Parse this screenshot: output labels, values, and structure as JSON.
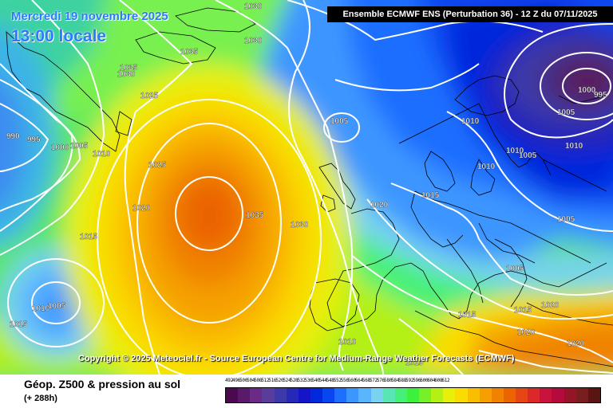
{
  "header": {
    "date": "Mercredi 19 novembre 2025",
    "time": "13:00 locale",
    "ensemble": "Ensemble ECMWF ENS  (Perturbation 36)  -  12 Z du 07/11/2025"
  },
  "copyright": "Copyright © 2025 Meteociel.fr - Source European Centre for Medium-Range Weather Forecasts (ECMWF)",
  "footer": {
    "title": "Géop. Z500 & pression au sol",
    "subtitle": "(+ 288h)"
  },
  "isobars": {
    "l1": "1030",
    "l2": "1030",
    "l3": "1035",
    "l4": "1035",
    "l5": "1030",
    "l6": "1025",
    "l7": "990",
    "l8": "995",
    "l9": "1000",
    "l10": "1005",
    "l11": "1010",
    "l12": "1025",
    "l13": "1020",
    "l14": "1015",
    "l15": "1035",
    "l16": "1030",
    "l17": "1005",
    "l18": "1020",
    "l19": "1015",
    "l20": "1010",
    "l21": "1010",
    "l22": "1010",
    "l23": "1005",
    "l24": "1000",
    "l25": "995",
    "l26": "1005",
    "l27": "1005",
    "l28": "1010",
    "l29": "1005",
    "l30": "1015",
    "l31": "1020",
    "l32": "1020",
    "l33": "1015",
    "l34": "1010",
    "l35": "1015",
    "l36": "1020",
    "l37": "1010",
    "l38": "1005",
    "l39": "1015"
  },
  "scale": {
    "labels": [
      "492",
      "496",
      "500",
      "504",
      "508",
      "512",
      "516",
      "520",
      "524",
      "528",
      "532",
      "536",
      "540",
      "544",
      "548",
      "552",
      "556",
      "560",
      "564",
      "568",
      "572",
      "576",
      "580",
      "584",
      "588",
      "592",
      "596",
      "600",
      "604",
      "608",
      "612"
    ],
    "colors": [
      "#4b0a4f",
      "#5a1a6a",
      "#6a2a85",
      "#5a3c9a",
      "#3c3aa8",
      "#2828b8",
      "#1414c8",
      "#0028dc",
      "#0a46f0",
      "#1e6eff",
      "#3c96ff",
      "#5ab4ff",
      "#78d2f0",
      "#5ae6b4",
      "#46f078",
      "#3cf03c",
      "#78f028",
      "#b4f014",
      "#e6f00a",
      "#fadc00",
      "#fabe00",
      "#f5a000",
      "#f08200",
      "#eb6400",
      "#e64614",
      "#dc2828",
      "#c8143c",
      "#b40a3c",
      "#961428",
      "#781e1e",
      "#5a1414"
    ]
  },
  "colors": {
    "isobar": "#ffffff",
    "title_blue": "#2a7cff",
    "coast": "#000000"
  }
}
